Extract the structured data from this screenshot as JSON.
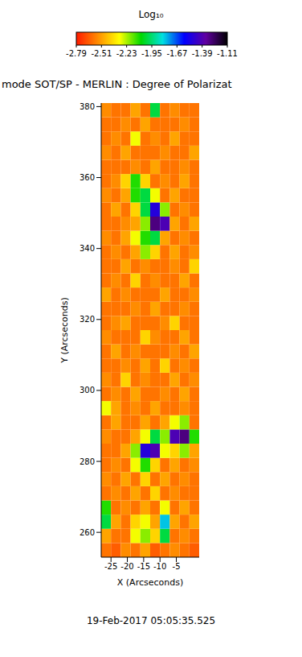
{
  "chart_data": {
    "type": "heatmap",
    "title": "mode SOT/SP - MERLIN : Degree of Polarizat",
    "subtitle": "19-Feb-2017 05:05:35.525",
    "x_label": "X (Arcseconds)",
    "y_label": "Y (Arcseconds)",
    "xlim": [
      -28,
      2
    ],
    "ylim": [
      253,
      381
    ],
    "xticks": [
      -25,
      -20,
      -15,
      -10,
      -5
    ],
    "yticks": [
      260,
      280,
      300,
      320,
      340,
      360,
      380
    ],
    "x_bins": [
      -28,
      -25,
      -22,
      -19,
      -16,
      -13,
      -10,
      -7,
      -4,
      -1,
      2
    ],
    "y_bins": [
      253,
      257,
      261,
      265,
      269,
      273,
      277,
      281,
      285,
      289,
      293,
      297,
      301,
      305,
      309,
      313,
      317,
      321,
      325,
      329,
      333,
      337,
      341,
      345,
      349,
      353,
      357,
      361,
      365,
      369,
      373,
      377,
      381
    ],
    "cells": [
      [
        -2.6,
        -2.65,
        -2.55,
        -2.6,
        -2.5,
        -2.65,
        -2.6,
        -2.55,
        -2.6,
        -2.65
      ],
      [
        -2.5,
        -2.6,
        -2.6,
        -2.3,
        -2.2,
        -2.4,
        -2.0,
        -2.6,
        -2.55,
        -2.6
      ],
      [
        -2.0,
        -2.5,
        -2.6,
        -2.4,
        -2.3,
        -2.5,
        -1.8,
        -2.5,
        -2.6,
        -2.5
      ],
      [
        -2.1,
        -2.6,
        -2.55,
        -2.6,
        -2.5,
        -2.6,
        -2.3,
        -2.6,
        -2.5,
        -2.6
      ],
      [
        -2.6,
        -2.55,
        -2.6,
        -2.5,
        -2.6,
        -2.4,
        -2.6,
        -2.55,
        -2.6,
        -2.6
      ],
      [
        -2.55,
        -2.6,
        -2.5,
        -2.6,
        -2.4,
        -2.6,
        -2.5,
        -2.6,
        -2.55,
        -2.6
      ],
      [
        -2.6,
        -2.55,
        -2.6,
        -2.3,
        -2.1,
        -2.4,
        -2.6,
        -2.5,
        -2.6,
        -2.55
      ],
      [
        -2.6,
        -2.6,
        -2.5,
        -2.2,
        -1.5,
        -1.4,
        -2.3,
        -2.4,
        -2.2,
        -2.5
      ],
      [
        -2.55,
        -2.6,
        -2.6,
        -2.5,
        -2.3,
        -2.0,
        -2.2,
        -1.4,
        -1.3,
        -2.1
      ],
      [
        -2.6,
        -2.5,
        -2.6,
        -2.6,
        -2.5,
        -2.6,
        -2.5,
        -2.3,
        -2.2,
        -2.6
      ],
      [
        -2.3,
        -2.5,
        -2.6,
        -2.55,
        -2.6,
        -2.5,
        -2.6,
        -2.6,
        -2.55,
        -2.6
      ],
      [
        -2.6,
        -2.55,
        -2.6,
        -2.5,
        -2.6,
        -2.6,
        -2.55,
        -2.6,
        -2.5,
        -2.6
      ],
      [
        -2.55,
        -2.6,
        -2.4,
        -2.6,
        -2.55,
        -2.6,
        -2.6,
        -2.5,
        -2.6,
        -2.55
      ],
      [
        -2.6,
        -2.6,
        -2.55,
        -2.6,
        -2.5,
        -2.6,
        -2.4,
        -2.6,
        -2.55,
        -2.6
      ],
      [
        -2.6,
        -2.5,
        -2.6,
        -2.55,
        -2.6,
        -2.6,
        -2.6,
        -2.55,
        -2.6,
        -2.5
      ],
      [
        -2.55,
        -2.6,
        -2.6,
        -2.6,
        -2.4,
        -2.55,
        -2.6,
        -2.6,
        -2.5,
        -2.6
      ],
      [
        -2.6,
        -2.55,
        -2.5,
        -2.6,
        -2.6,
        -2.6,
        -2.55,
        -2.4,
        -2.6,
        -2.6
      ],
      [
        -2.6,
        -2.6,
        -2.6,
        -2.55,
        -2.6,
        -2.5,
        -2.6,
        -2.6,
        -2.55,
        -2.6
      ],
      [
        -2.5,
        -2.6,
        -2.55,
        -2.6,
        -2.6,
        -2.6,
        -2.5,
        -2.6,
        -2.6,
        -2.55
      ],
      [
        -2.6,
        -2.55,
        -2.6,
        -2.4,
        -2.6,
        -2.55,
        -2.6,
        -2.6,
        -2.5,
        -2.6
      ],
      [
        -2.6,
        -2.6,
        -2.5,
        -2.6,
        -2.55,
        -2.6,
        -2.6,
        -2.55,
        -2.6,
        -2.4
      ],
      [
        -2.6,
        -2.55,
        -2.6,
        -2.5,
        -2.2,
        -2.4,
        -2.6,
        -2.5,
        -2.6,
        -2.55
      ],
      [
        -2.55,
        -2.6,
        -2.5,
        -2.3,
        -2.1,
        -2.0,
        -2.5,
        -2.6,
        -2.55,
        -2.6
      ],
      [
        -2.6,
        -2.6,
        -2.55,
        -2.5,
        -2.2,
        -1.3,
        -1.4,
        -2.5,
        -2.6,
        -2.5
      ],
      [
        -2.6,
        -2.5,
        -2.6,
        -2.4,
        -2.0,
        -1.5,
        -2.2,
        -2.6,
        -2.55,
        -2.6
      ],
      [
        -2.55,
        -2.6,
        -2.5,
        -2.1,
        -2.0,
        -2.3,
        -2.6,
        -2.5,
        -2.6,
        -2.6
      ],
      [
        -2.6,
        -2.55,
        -2.4,
        -2.1,
        -2.4,
        -2.6,
        -2.55,
        -2.6,
        -2.5,
        -2.6
      ],
      [
        -2.6,
        -2.6,
        -2.6,
        -2.55,
        -2.6,
        -2.5,
        -2.6,
        -2.6,
        -2.55,
        -2.6
      ],
      [
        -2.55,
        -2.6,
        -2.5,
        -2.6,
        -2.6,
        -2.6,
        -2.55,
        -2.6,
        -2.6,
        -2.5
      ],
      [
        -2.6,
        -2.55,
        -2.6,
        -2.3,
        -2.6,
        -2.55,
        -2.6,
        -2.5,
        -2.6,
        -2.6
      ],
      [
        -2.6,
        -2.6,
        -2.55,
        -2.6,
        -2.5,
        -2.6,
        -2.6,
        -2.6,
        -2.55,
        -2.6
      ],
      [
        -2.55,
        -2.6,
        -2.6,
        -2.5,
        -2.6,
        -2.0,
        -2.6,
        -2.55,
        -2.6,
        -2.6
      ]
    ],
    "colorbar": {
      "label": "Log₁₀",
      "range": [
        -2.79,
        -1.11
      ],
      "ticks": [
        -2.79,
        -2.51,
        -2.23,
        -1.95,
        -1.67,
        -1.39,
        -1.11
      ],
      "colors": [
        "#ff1a00",
        "#ff8c00",
        "#ffff00",
        "#00d800",
        "#00e0e0",
        "#0000ff",
        "#6000a0",
        "#000000"
      ]
    }
  }
}
